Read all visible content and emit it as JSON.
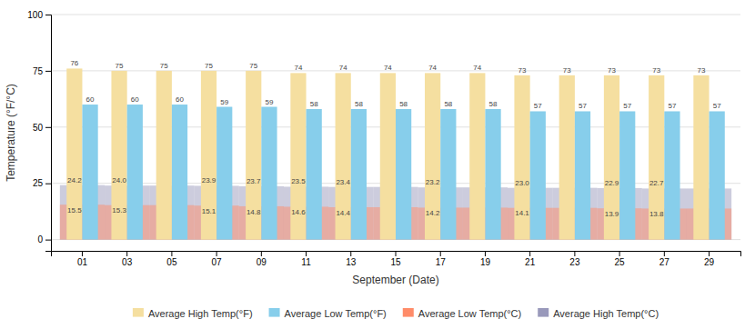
{
  "chart_data": {
    "type": "bar",
    "xlabel": "September (Date)",
    "ylabel": "Temperature (°F/°C)",
    "categories": [
      "01",
      "03",
      "05",
      "07",
      "09",
      "11",
      "13",
      "15",
      "17",
      "19",
      "21",
      "23",
      "25",
      "27",
      "29"
    ],
    "series": [
      {
        "name": "Average High Temp(°F)",
        "type": "bar",
        "color": "#F5DFA0",
        "values": [
          76,
          75,
          75,
          75,
          75,
          74,
          74,
          74,
          74,
          74,
          73,
          73,
          73,
          73,
          73
        ]
      },
      {
        "name": "Average Low Temp(°F)",
        "type": "bar",
        "color": "#87CEEB",
        "values": [
          60,
          60,
          60,
          59,
          59,
          58,
          58,
          58,
          58,
          58,
          57,
          57,
          57,
          57,
          57
        ]
      },
      {
        "name": "Average Low Temp(°C)",
        "type": "band",
        "color": "#FF8C69",
        "values": [
          15.5,
          15.3,
          15.3,
          15.1,
          14.8,
          14.6,
          14.4,
          14.4,
          14.2,
          14.2,
          14.1,
          14.1,
          13.9,
          13.8,
          13.8
        ],
        "value_labels": [
          "15.5",
          "15.3",
          null,
          "15.1",
          "14.8",
          "14.6",
          "14.4",
          null,
          "14.2",
          null,
          "14.1",
          null,
          "13.9",
          "13.8",
          null
        ]
      },
      {
        "name": "Average High Temp(°C)",
        "type": "band",
        "color": "#9999BB",
        "values": [
          24.2,
          24.0,
          24.0,
          23.9,
          23.7,
          23.5,
          23.4,
          23.4,
          23.2,
          23.2,
          23.0,
          23.0,
          22.9,
          22.7,
          22.7
        ],
        "value_labels": [
          "24.2",
          "24.0",
          null,
          "23.9",
          "23.7",
          "23.5",
          "23.4",
          null,
          "23.2",
          null,
          "23.0",
          null,
          "22.9",
          "22.7",
          null
        ]
      }
    ],
    "ylim": [
      -5,
      100
    ],
    "yticks": [
      0,
      25,
      50,
      75,
      100
    ],
    "grid": true,
    "data_labels": true,
    "legend": "bottom"
  }
}
